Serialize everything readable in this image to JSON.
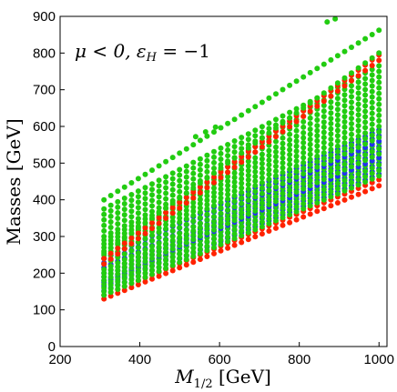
{
  "chart_data": {
    "type": "scatter",
    "title": "",
    "xlabel": "M_{1/2} [GeV]",
    "xlabel_main": "M",
    "xlabel_sub": "1/2",
    "xlabel_unit": " [GeV]",
    "ylabel": "Masses [GeV]",
    "annotation": "μ < 0, ε_H = −1",
    "annotation_mu": "μ < 0, ",
    "annotation_eps": "ε",
    "annotation_sub": "H",
    "annotation_rest": " = −1",
    "xlim": [
      200,
      1020
    ],
    "ylim": [
      0,
      900
    ],
    "xticks": [
      200,
      400,
      600,
      800,
      1000
    ],
    "xtick_labels": [
      "200",
      "400",
      "600",
      "800",
      "1000"
    ],
    "yticks": [
      0,
      100,
      200,
      300,
      400,
      500,
      600,
      700,
      800,
      900
    ],
    "ytick_labels": [
      "0",
      "100",
      "200",
      "300",
      "400",
      "500",
      "600",
      "700",
      "800",
      "900"
    ],
    "grid": false,
    "legend": "none",
    "x_start": 310,
    "x_end": 1000,
    "x_step": 17.25,
    "series": [
      {
        "color": "#ff2200",
        "y_start": 130,
        "y_end": 438
      },
      {
        "color": "#ff2200",
        "y_start": 140,
        "y_end": 455
      },
      {
        "color": "#2233ee",
        "y_start": 152,
        "y_end": 470
      },
      {
        "color": "#2233ee",
        "y_start": 165,
        "y_end": 485
      },
      {
        "color": "#2233ee",
        "y_start": 175,
        "y_end": 500
      },
      {
        "color": "#22cc11",
        "y_start": 140,
        "y_end": 465
      },
      {
        "color": "#22cc11",
        "y_start": 150,
        "y_end": 480
      },
      {
        "color": "#22cc11",
        "y_start": 160,
        "y_end": 495
      },
      {
        "color": "#22cc11",
        "y_start": 170,
        "y_end": 510
      },
      {
        "color": "#2233ee",
        "y_start": 180,
        "y_end": 515
      },
      {
        "color": "#2233ee",
        "y_start": 190,
        "y_end": 530
      },
      {
        "color": "#2233ee",
        "y_start": 200,
        "y_end": 545
      },
      {
        "color": "#22cc11",
        "y_start": 180,
        "y_end": 525
      },
      {
        "color": "#22cc11",
        "y_start": 190,
        "y_end": 540
      },
      {
        "color": "#22cc11",
        "y_start": 200,
        "y_end": 555
      },
      {
        "color": "#2233ee",
        "y_start": 215,
        "y_end": 560
      },
      {
        "color": "#2233ee",
        "y_start": 228,
        "y_end": 575
      },
      {
        "color": "#2233ee",
        "y_start": 240,
        "y_end": 590
      },
      {
        "color": "#22cc11",
        "y_start": 210,
        "y_end": 570
      },
      {
        "color": "#22cc11",
        "y_start": 225,
        "y_end": 585
      },
      {
        "color": "#22cc11",
        "y_start": 240,
        "y_end": 600
      },
      {
        "color": "#22cc11",
        "y_start": 250,
        "y_end": 615
      },
      {
        "color": "#22cc11",
        "y_start": 260,
        "y_end": 630
      },
      {
        "color": "#22cc11",
        "y_start": 270,
        "y_end": 645
      },
      {
        "color": "#22cc11",
        "y_start": 280,
        "y_end": 660
      },
      {
        "color": "#22cc11",
        "y_start": 290,
        "y_end": 675
      },
      {
        "color": "#22cc11",
        "y_start": 300,
        "y_end": 690
      },
      {
        "color": "#22cc11",
        "y_start": 315,
        "y_end": 705
      },
      {
        "color": "#22cc11",
        "y_start": 330,
        "y_end": 720
      },
      {
        "color": "#22cc11",
        "y_start": 345,
        "y_end": 735
      },
      {
        "color": "#22cc11",
        "y_start": 360,
        "y_end": 750
      },
      {
        "color": "#22cc11",
        "y_start": 375,
        "y_end": 765
      },
      {
        "color": "#ff2200",
        "y_start": 225,
        "y_end": 780
      },
      {
        "color": "#ff2200",
        "y_start": 240,
        "y_end": 795
      },
      {
        "color": "#22cc11",
        "y_start": 255,
        "y_end": 800
      },
      {
        "color": "#22cc11",
        "y_start": 400,
        "y_end": 862
      }
    ],
    "extra_points": [
      {
        "x": 540,
        "y": 572,
        "color": "#22cc11"
      },
      {
        "x": 565,
        "y": 585,
        "color": "#22cc11"
      },
      {
        "x": 590,
        "y": 598,
        "color": "#22cc11"
      },
      {
        "x": 870,
        "y": 885,
        "color": "#22cc11"
      },
      {
        "x": 890,
        "y": 893,
        "color": "#22cc11"
      }
    ]
  }
}
